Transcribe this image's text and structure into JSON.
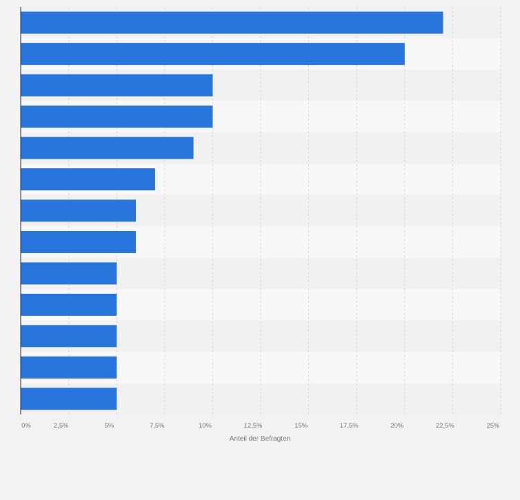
{
  "chart_data": {
    "type": "bar",
    "orientation": "horizontal",
    "categories": [
      "",
      "",
      "",
      "",
      "",
      "",
      "",
      "",
      "",
      "",
      "",
      "",
      ""
    ],
    "values": [
      22,
      20,
      10,
      10,
      9,
      7,
      6,
      6,
      5,
      5,
      5,
      5,
      5
    ],
    "xlabel": "Anteil der Befragten",
    "ylabel": "",
    "xlim": [
      0,
      25
    ],
    "ticks": [
      0,
      2.5,
      5,
      7.5,
      10,
      12.5,
      15,
      17.5,
      20,
      22.5,
      25
    ],
    "tick_labels": [
      "0%",
      "2,5%",
      "5%",
      "7,5%",
      "10%",
      "12,5%",
      "15%",
      "17,5%",
      "20%",
      "22,5%",
      "25%"
    ],
    "grid": true,
    "bar_color": "#2876dd",
    "band_colors": [
      "#f1f1f2",
      "#f8f8f9"
    ],
    "axis_color": "#2b2b2b",
    "grid_color": "#d5d5d8",
    "tick_label_color": "#7a7a7a",
    "page_background": "#f2f2f3"
  }
}
